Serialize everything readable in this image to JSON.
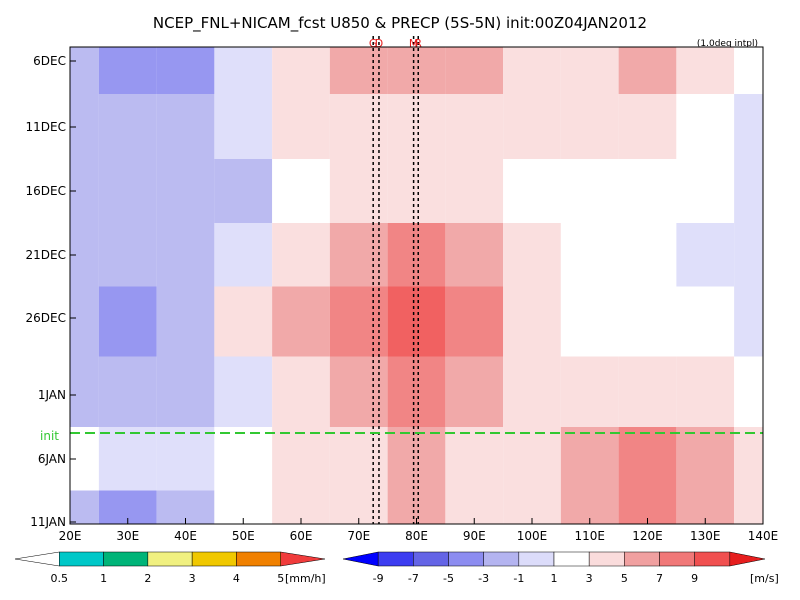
{
  "chart_data": {
    "type": "heatmap",
    "title": "NCEP_FNL+NICAM_fcst U850 & PRECP (5S-5N) init:00Z04JAN2012",
    "note": "(1.0deg intpl)",
    "x_ticks": [
      "20E",
      "30E",
      "40E",
      "50E",
      "60E",
      "70E",
      "80E",
      "90E",
      "100E",
      "110E",
      "120E",
      "130E",
      "140E"
    ],
    "xlim": [
      20,
      140
    ],
    "y_ticks": [
      "6DEC",
      "11DEC",
      "16DEC",
      "21DEC",
      "26DEC",
      "1JAN",
      "6JAN",
      "11JAN"
    ],
    "init_label": "init",
    "markers": [
      {
        "label": "G",
        "lon": 72.5
      },
      {
        "label": "D",
        "lon": 73.5
      },
      {
        "label": "M",
        "lon": 79.5
      },
      {
        "label": "R",
        "lon": 80.3
      }
    ],
    "rows": [
      "6DEC",
      "11DEC",
      "16DEC",
      "21DEC",
      "26DEC",
      "1JAN",
      "6JAN",
      "11JAN"
    ],
    "columns": [
      20,
      30,
      40,
      50,
      60,
      70,
      80,
      90,
      100,
      110,
      120,
      130,
      140
    ],
    "u850_values": [
      [
        -3,
        -5,
        -5,
        -1,
        3,
        5,
        5,
        5,
        3,
        3,
        5,
        3,
        1
      ],
      [
        -3,
        -3,
        -3,
        -1,
        3,
        3,
        3,
        3,
        3,
        3,
        3,
        1,
        -1
      ],
      [
        -3,
        -3,
        -3,
        -3,
        1,
        3,
        3,
        3,
        1,
        1,
        1,
        1,
        -1
      ],
      [
        -3,
        -3,
        -3,
        -1,
        3,
        5,
        7,
        5,
        3,
        1,
        1,
        -1,
        -1
      ],
      [
        -3,
        -5,
        -3,
        3,
        5,
        7,
        9,
        7,
        3,
        1,
        1,
        1,
        -1
      ],
      [
        -3,
        -3,
        -3,
        -1,
        3,
        5,
        7,
        5,
        3,
        3,
        3,
        3,
        1
      ],
      [
        1,
        -1,
        -1,
        1,
        3,
        3,
        5,
        3,
        3,
        5,
        7,
        5,
        3
      ],
      [
        -3,
        -5,
        -3,
        1,
        3,
        3,
        5,
        3,
        3,
        5,
        7,
        5,
        3
      ]
    ],
    "precip_legend": {
      "ticks": [
        "0.5",
        "1",
        "2",
        "3",
        "4",
        "5"
      ],
      "unit": "[mm/h]",
      "colors": [
        "#00c8c8",
        "#00b478",
        "#f0f080",
        "#f0c800",
        "#f08000",
        "#f03c3c"
      ]
    },
    "wind_legend": {
      "ticks": [
        "-9",
        "-7",
        "-5",
        "-3",
        "-1",
        "1",
        "3",
        "5",
        "7",
        "9"
      ],
      "unit": "[m/s]",
      "colors": [
        "#0000ff",
        "#3c3cf0",
        "#6464e6",
        "#8c8cf0",
        "#b4b4f0",
        "#dcdcfa",
        "#ffffff",
        "#fadcdc",
        "#f0a0a0",
        "#f07878",
        "#f05050",
        "#e61e1e"
      ]
    }
  }
}
